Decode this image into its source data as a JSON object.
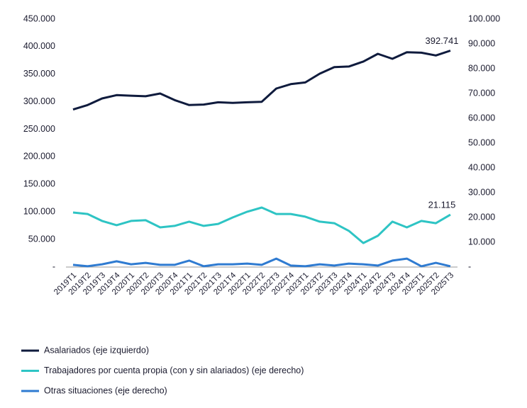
{
  "chart_data": {
    "type": "line",
    "categories": [
      "2019T1",
      "2019T2",
      "2019T3",
      "2019T4",
      "2020T1",
      "2020T2",
      "2020T3",
      "2020T4",
      "2021T1",
      "2021T2",
      "2021T3",
      "2021T4",
      "2022T1",
      "2022T2",
      "2022T3",
      "2022T4",
      "2023T1",
      "2023T2",
      "2023T3",
      "2023T4",
      "2024T1",
      "2024T2",
      "2024T3",
      "2024T4",
      "2025T1",
      "2025T2",
      "2025T3"
    ],
    "series": [
      {
        "name": "Asalariados (eje izquierdo)",
        "color": "#0f1b3d",
        "axis": "y",
        "values": [
          286000,
          294000,
          306000,
          312000,
          311000,
          310000,
          315000,
          303000,
          294000,
          295000,
          299000,
          298000,
          299000,
          300000,
          324000,
          332000,
          335000,
          351000,
          363000,
          364000,
          373000,
          387000,
          378000,
          390000,
          389000,
          384000,
          392741
        ],
        "value_labels": [
          null,
          null,
          null,
          null,
          null,
          null,
          null,
          null,
          null,
          null,
          null,
          null,
          null,
          null,
          null,
          null,
          null,
          null,
          null,
          null,
          null,
          null,
          null,
          null,
          null,
          null,
          "392.741"
        ]
      },
      {
        "name": "Trabajadores por cuenta propia (con y sin alariados) (eje derecho)",
        "color": "#2ec4c4",
        "axis": "y2",
        "values": [
          22000,
          21400,
          18600,
          16900,
          18600,
          18900,
          16000,
          16600,
          18300,
          16600,
          17400,
          20000,
          22300,
          24000,
          21400,
          21400,
          20300,
          18300,
          17700,
          14600,
          9700,
          12600,
          18300,
          16000,
          18600,
          17700,
          21115
        ],
        "value_labels": [
          null,
          null,
          null,
          null,
          null,
          null,
          null,
          null,
          null,
          null,
          null,
          null,
          null,
          null,
          null,
          null,
          null,
          null,
          null,
          null,
          null,
          null,
          null,
          null,
          null,
          null,
          "21.115"
        ]
      },
      {
        "name": "Otras situaciones (eje derecho)",
        "color": "#2f7bd1",
        "axis": "y2",
        "values": [
          900,
          300,
          1100,
          2300,
          1100,
          1700,
          900,
          900,
          2600,
          300,
          1100,
          1100,
          1400,
          900,
          3400,
          600,
          300,
          1100,
          600,
          1400,
          1100,
          600,
          2600,
          3400,
          300,
          1700,
          300
        ]
      }
    ],
    "ylim": [
      0,
      450000
    ],
    "yticks": [
      {
        "value": 0,
        "label": "-"
      },
      {
        "value": 50000,
        "label": "50.000"
      },
      {
        "value": 100000,
        "label": "100.000"
      },
      {
        "value": 150000,
        "label": "150.000"
      },
      {
        "value": 200000,
        "label": "200.000"
      },
      {
        "value": 250000,
        "label": "250.000"
      },
      {
        "value": 300000,
        "label": "300.000"
      },
      {
        "value": 350000,
        "label": "350.000"
      },
      {
        "value": 400000,
        "label": "400.000"
      },
      {
        "value": 450000,
        "label": "450.000"
      }
    ],
    "y2lim": [
      0,
      100000
    ],
    "y2ticks": [
      {
        "value": 0,
        "label": "-"
      },
      {
        "value": 10000,
        "label": "10.000"
      },
      {
        "value": 20000,
        "label": "20.000"
      },
      {
        "value": 30000,
        "label": "30.000"
      },
      {
        "value": 40000,
        "label": "40.000"
      },
      {
        "value": 50000,
        "label": "50.000"
      },
      {
        "value": 60000,
        "label": "60.000"
      },
      {
        "value": 70000,
        "label": "70.000"
      },
      {
        "value": 80000,
        "label": "80.000"
      },
      {
        "value": 90000,
        "label": "90.000"
      },
      {
        "value": 100000,
        "label": "100.000"
      }
    ],
    "grid": false
  }
}
